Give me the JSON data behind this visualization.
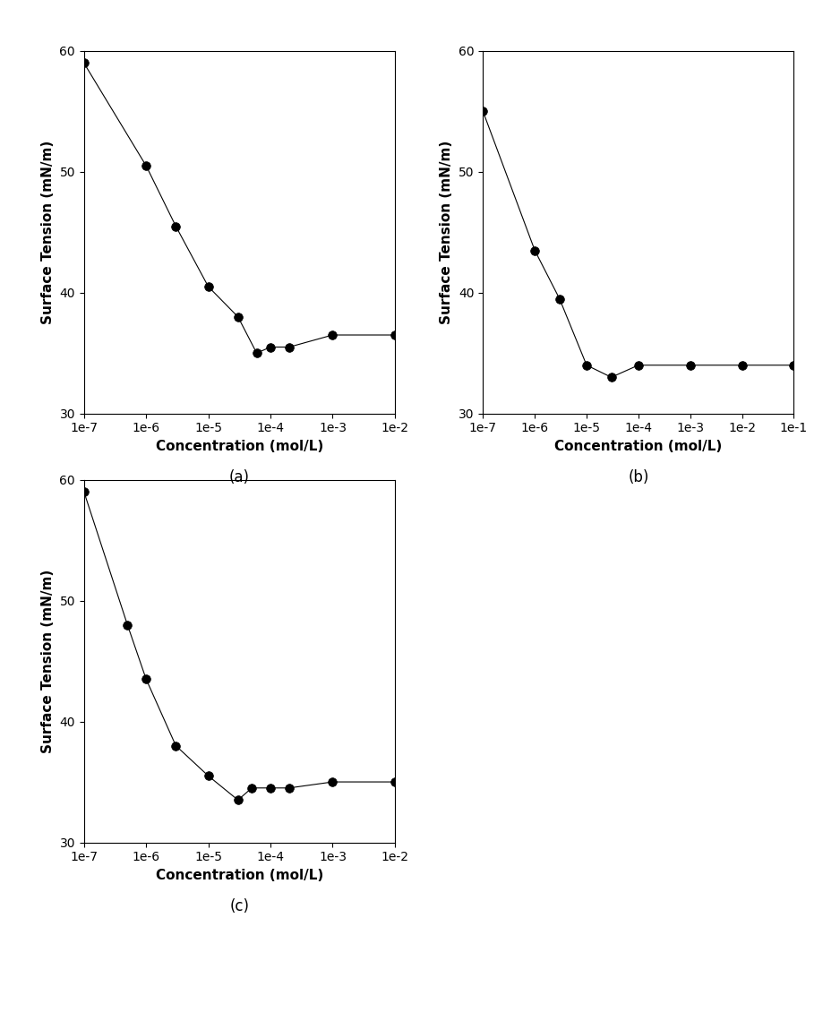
{
  "subplot_a": {
    "x": [
      1e-07,
      1e-06,
      3e-06,
      1e-05,
      3e-05,
      6e-05,
      0.0001,
      0.0002,
      0.001,
      0.01
    ],
    "y": [
      59.0,
      50.5,
      45.5,
      40.5,
      38.0,
      35.0,
      35.5,
      35.5,
      36.5,
      36.5
    ],
    "xlim": [
      1e-07,
      0.01
    ],
    "ylim": [
      30,
      60
    ],
    "xticks": [
      1e-07,
      1e-06,
      1e-05,
      0.0001,
      0.001,
      0.01
    ],
    "xticklabels": [
      "1e-7",
      "1e-6",
      "1e-5",
      "1e-4",
      "1e-3",
      "1e-2"
    ],
    "xlabel": "Concentration (mol/L)",
    "ylabel": "Surface Tension (mN/m)",
    "label": "(a)"
  },
  "subplot_b": {
    "x": [
      1e-07,
      1e-06,
      3e-06,
      1e-05,
      3e-05,
      0.0001,
      0.001,
      0.01,
      0.1
    ],
    "y": [
      55.0,
      43.5,
      39.5,
      34.0,
      33.0,
      34.0,
      34.0,
      34.0,
      34.0
    ],
    "xlim": [
      1e-07,
      0.1
    ],
    "ylim": [
      30,
      60
    ],
    "xticks": [
      1e-07,
      1e-06,
      1e-05,
      0.0001,
      0.001,
      0.01,
      0.1
    ],
    "xticklabels": [
      "1e-7",
      "1e-6",
      "1e-5",
      "1e-4",
      "1e-3",
      "1e-2",
      "1e-1"
    ],
    "xlabel": "Concentration (mol/L)",
    "ylabel": "Surface Tension (mN/m)",
    "label": "(b)"
  },
  "subplot_c": {
    "x": [
      1e-07,
      5e-07,
      1e-06,
      3e-06,
      1e-05,
      3e-05,
      5e-05,
      0.0001,
      0.0002,
      0.001,
      0.01
    ],
    "y": [
      59.0,
      48.0,
      43.5,
      38.0,
      35.5,
      33.5,
      34.5,
      34.5,
      34.5,
      35.0,
      35.0
    ],
    "xlim": [
      1e-07,
      0.01
    ],
    "ylim": [
      30,
      60
    ],
    "xticks": [
      1e-07,
      1e-06,
      1e-05,
      0.0001,
      0.001,
      0.01
    ],
    "xticklabels": [
      "1e-7",
      "1e-6",
      "1e-5",
      "1e-4",
      "1e-3",
      "1e-2"
    ],
    "xlabel": "Concentration (mol/L)",
    "ylabel": "Surface Tension (mN/m)",
    "label": "(c)"
  },
  "marker": "o",
  "markersize": 7,
  "linecolor": "black",
  "markerfacecolor": "black",
  "markeredgecolor": "black",
  "linewidth": 0.8,
  "background_color": "white"
}
